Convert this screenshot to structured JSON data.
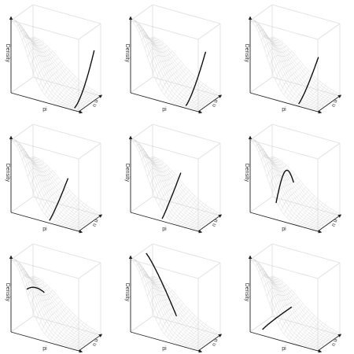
{
  "chart_data": {
    "type": "surface",
    "layout": "3x3 grid of 3D perspective surface plots",
    "panel_count": 9,
    "axes": {
      "x": "pi",
      "y": "n u",
      "z": "Density"
    },
    "surface": {
      "description": "light gray wireframe density surface, peak near pi = 0, decaying toward pi = 1",
      "line_color": "#d9d9d9",
      "box_color": "#dcdcdc"
    },
    "highlight_color": "#111111",
    "panels": [
      {
        "label": "",
        "highlight": "curve along back right edge, rising steeply to the top"
      },
      {
        "label": "",
        "highlight": "curve near the right side, rising upward"
      },
      {
        "label": "",
        "highlight": "curve near the right side, rising more gently"
      },
      {
        "label": "",
        "highlight": "curve in the middle-right area, rising"
      },
      {
        "label": "",
        "highlight": "curve in the middle area, rising"
      },
      {
        "label": "",
        "highlight": "arc peaking then bending down"
      },
      {
        "label": "",
        "highlight": "curve near the top, falling slowly"
      },
      {
        "label": "",
        "highlight": "steep falling curve from top-left"
      },
      {
        "label": "",
        "highlight": "curve low in the box, rising toward the middle"
      }
    ]
  },
  "labels": {
    "x_axis": "pi",
    "y_axis": "n u",
    "z_axis": "Density"
  }
}
